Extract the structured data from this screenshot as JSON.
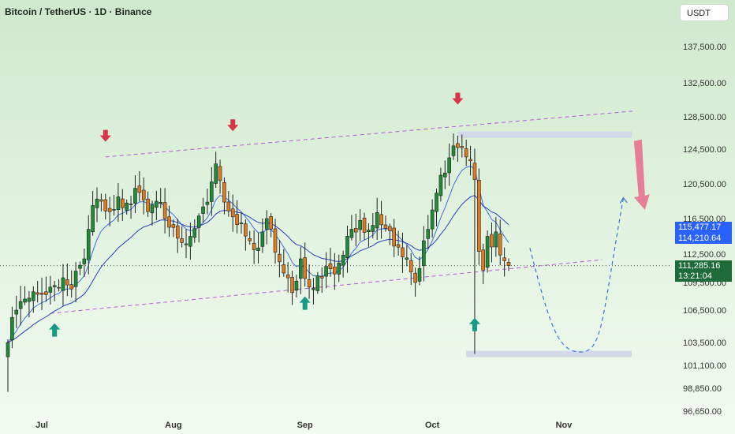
{
  "header": {
    "title": "Bitcoin / TetherUS · 1D · Binance",
    "currency_button": "USDT"
  },
  "price_labels": {
    "ema1": "115,477.17",
    "ema2": "114,210.64",
    "last": "111,285.16",
    "countdown": "13:21:04"
  },
  "chart_data": {
    "type": "candlestick",
    "title": "Bitcoin / TetherUS · 1D · Binance",
    "xlabel": "",
    "ylabel": "",
    "ylim": [
      96000,
      140000
    ],
    "yticks": [
      {
        "value": 137500,
        "label": "137,500.00"
      },
      {
        "value": 132500,
        "label": "132,500.00"
      },
      {
        "value": 128500,
        "label": "128,500.00"
      },
      {
        "value": 124500,
        "label": "124,500.00"
      },
      {
        "value": 120500,
        "label": "120,500.00"
      },
      {
        "value": 116500,
        "label": "116,500.00"
      },
      {
        "value": 112500,
        "label": "112,500.00"
      },
      {
        "value": 109500,
        "label": "109,500.00"
      },
      {
        "value": 106500,
        "label": "106,500.00"
      },
      {
        "value": 103500,
        "label": "103,500.00"
      },
      {
        "value": 101100,
        "label": "101,100.00"
      },
      {
        "value": 98850,
        "label": "98,850.00"
      },
      {
        "value": 96650,
        "label": "96,650.00"
      }
    ],
    "xticks": [
      {
        "index": 8,
        "label": "Jul"
      },
      {
        "index": 39,
        "label": "Aug"
      },
      {
        "index": 70,
        "label": "Sep"
      },
      {
        "index": 100,
        "label": "Oct"
      },
      {
        "index": 131,
        "label": "Nov"
      }
    ],
    "x_range": [
      -2,
      152
    ],
    "close_anchors": [
      [
        0,
        103500
      ],
      [
        2,
        106500
      ],
      [
        5,
        107800
      ],
      [
        8,
        108200
      ],
      [
        10,
        109000
      ],
      [
        13,
        110000
      ],
      [
        15,
        108800
      ],
      [
        18,
        112000
      ],
      [
        20,
        118000
      ],
      [
        22,
        118500
      ],
      [
        24,
        117300
      ],
      [
        26,
        119000
      ],
      [
        28,
        118300
      ],
      [
        31,
        119500
      ],
      [
        33,
        117300
      ],
      [
        35,
        118500
      ],
      [
        37,
        116500
      ],
      [
        39,
        115500
      ],
      [
        41,
        113800
      ],
      [
        43,
        114500
      ],
      [
        45,
        116800
      ],
      [
        47,
        118400
      ],
      [
        49,
        122800
      ],
      [
        51,
        118400
      ],
      [
        53,
        116700
      ],
      [
        55,
        116000
      ],
      [
        57,
        114000
      ],
      [
        59,
        113200
      ],
      [
        61,
        116500
      ],
      [
        63,
        112700
      ],
      [
        65,
        110500
      ],
      [
        67,
        108400
      ],
      [
        69,
        112000
      ],
      [
        71,
        109000
      ],
      [
        73,
        110200
      ],
      [
        75,
        111200
      ],
      [
        77,
        110400
      ],
      [
        79,
        112400
      ],
      [
        81,
        115300
      ],
      [
        83,
        116300
      ],
      [
        85,
        115200
      ],
      [
        87,
        117200
      ],
      [
        89,
        115400
      ],
      [
        91,
        113400
      ],
      [
        93,
        112200
      ],
      [
        95,
        110600
      ],
      [
        96,
        109500
      ],
      [
        98,
        114000
      ],
      [
        100,
        117500
      ],
      [
        102,
        121500
      ],
      [
        104,
        123500
      ],
      [
        106,
        124700
      ],
      [
        108,
        123600
      ],
      [
        110,
        121000
      ],
      [
        111,
        112800
      ],
      [
        112,
        110800
      ],
      [
        113,
        114500
      ],
      [
        114,
        113300
      ],
      [
        115,
        115000
      ],
      [
        116,
        112400
      ],
      [
        117,
        111800
      ],
      [
        118,
        111285
      ]
    ],
    "channel": {
      "upper": {
        "x1": 23,
        "y1": 123600,
        "x2": 148,
        "y2": 129200
      },
      "lower": {
        "x1": 10,
        "y1": 106200,
        "x2": 140,
        "y2": 111900
      }
    },
    "zones": [
      {
        "x1": 106,
        "x2": 147,
        "price": 126300
      },
      {
        "x1": 108,
        "x2": 147,
        "price": 102300
      }
    ],
    "last_price": 111285.16,
    "ema_values": [
      115477.17,
      114210.64
    ],
    "down_arrows": [
      {
        "x": 23,
        "price": 126000
      },
      {
        "x": 53,
        "price": 127300
      },
      {
        "x": 106,
        "price": 130500
      }
    ],
    "up_arrows": [
      {
        "x": 11,
        "price": 104700
      },
      {
        "x": 70,
        "price": 107300
      },
      {
        "x": 110,
        "price": 105200
      }
    ],
    "projection": [
      {
        "x": 123,
        "price": 113200
      },
      {
        "x": 128,
        "price": 106000
      },
      {
        "x": 135,
        "price": 102500
      },
      {
        "x": 140,
        "price": 106500
      },
      {
        "x": 145,
        "price": 118800
      }
    ],
    "target_arrow": {
      "x": 149,
      "from": 125500,
      "to": 117500
    },
    "colors": {
      "up": "#1e8b35",
      "down": "#e07a1f",
      "ema_fast": "#3f6fe0",
      "ema_slow": "#2a3fbf",
      "channel": "#b45bd6",
      "zone": "#cfd4ea",
      "down_arrow": "#d9344a",
      "up_arrow": "#159a83",
      "projection": "#3c74d8",
      "target": "#e86a8c"
    }
  }
}
